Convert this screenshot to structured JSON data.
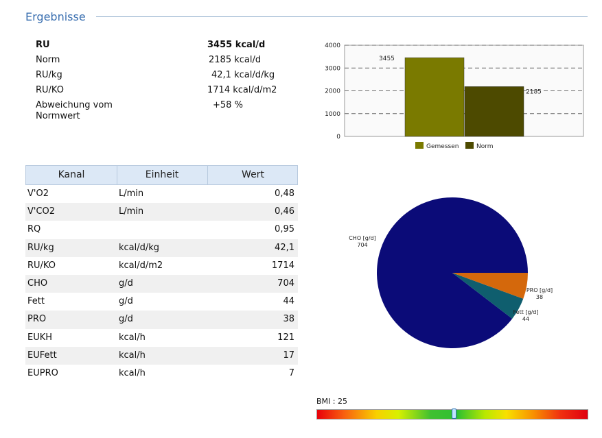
{
  "section": {
    "title": "Ergebnisse"
  },
  "summary": [
    {
      "label": "RU",
      "value": "3455 kcal/d",
      "bold": true
    },
    {
      "label": "Norm",
      "value": "2185 kcal/d",
      "bold": false
    },
    {
      "label": "RU/kg",
      "value": "42,1 kcal/d/kg",
      "bold": false
    },
    {
      "label": "RU/KO",
      "value": "1714 kcal/d/m2",
      "bold": false
    },
    {
      "label": "Abweichung vom Normwert",
      "value": "+58 %",
      "bold": false
    }
  ],
  "table": {
    "headers": [
      "Kanal",
      "Einheit",
      "Wert"
    ],
    "rows": [
      [
        "V'O2",
        "L/min",
        "0,48"
      ],
      [
        "V'CO2",
        "L/min",
        "0,46"
      ],
      [
        "RQ",
        "",
        "0,95"
      ],
      [
        "RU/kg",
        "kcal/d/kg",
        "42,1"
      ],
      [
        "RU/KO",
        "kcal/d/m2",
        "1714"
      ],
      [
        "CHO",
        "g/d",
        "704"
      ],
      [
        "Fett",
        "g/d",
        "44"
      ],
      [
        "PRO",
        "g/d",
        "38"
      ],
      [
        "EUKH",
        "kcal/h",
        "121"
      ],
      [
        "EUFett",
        "kcal/h",
        "17"
      ],
      [
        "EUPRO",
        "kcal/h",
        "7"
      ]
    ]
  },
  "chart_data": [
    {
      "type": "bar",
      "categories": [
        "Gemessen",
        "Norm"
      ],
      "values": [
        3455,
        2185
      ],
      "data_labels": [
        "3455",
        "2185"
      ],
      "ylim": [
        0,
        4000
      ],
      "yticks": [
        "0",
        "1000",
        "2000",
        "3000",
        "4000"
      ],
      "legend": [
        "Gemessen",
        "Norm"
      ],
      "legend_position": "bottom",
      "grid": true,
      "colors": [
        "#7a7a00",
        "#4d4a00"
      ]
    },
    {
      "type": "pie",
      "slices": [
        {
          "name": "CHO [g/d]",
          "value": 704,
          "color": "#0b0b78"
        },
        {
          "name": "PRO [g/d]",
          "value": 38,
          "color": "#0f5e6e"
        },
        {
          "name": "Fett [g/d]",
          "value": 44,
          "color": "#d4680c"
        }
      ]
    }
  ],
  "bmi": {
    "label": "BMI :  25",
    "value": 25,
    "marker_fraction": 0.505
  }
}
